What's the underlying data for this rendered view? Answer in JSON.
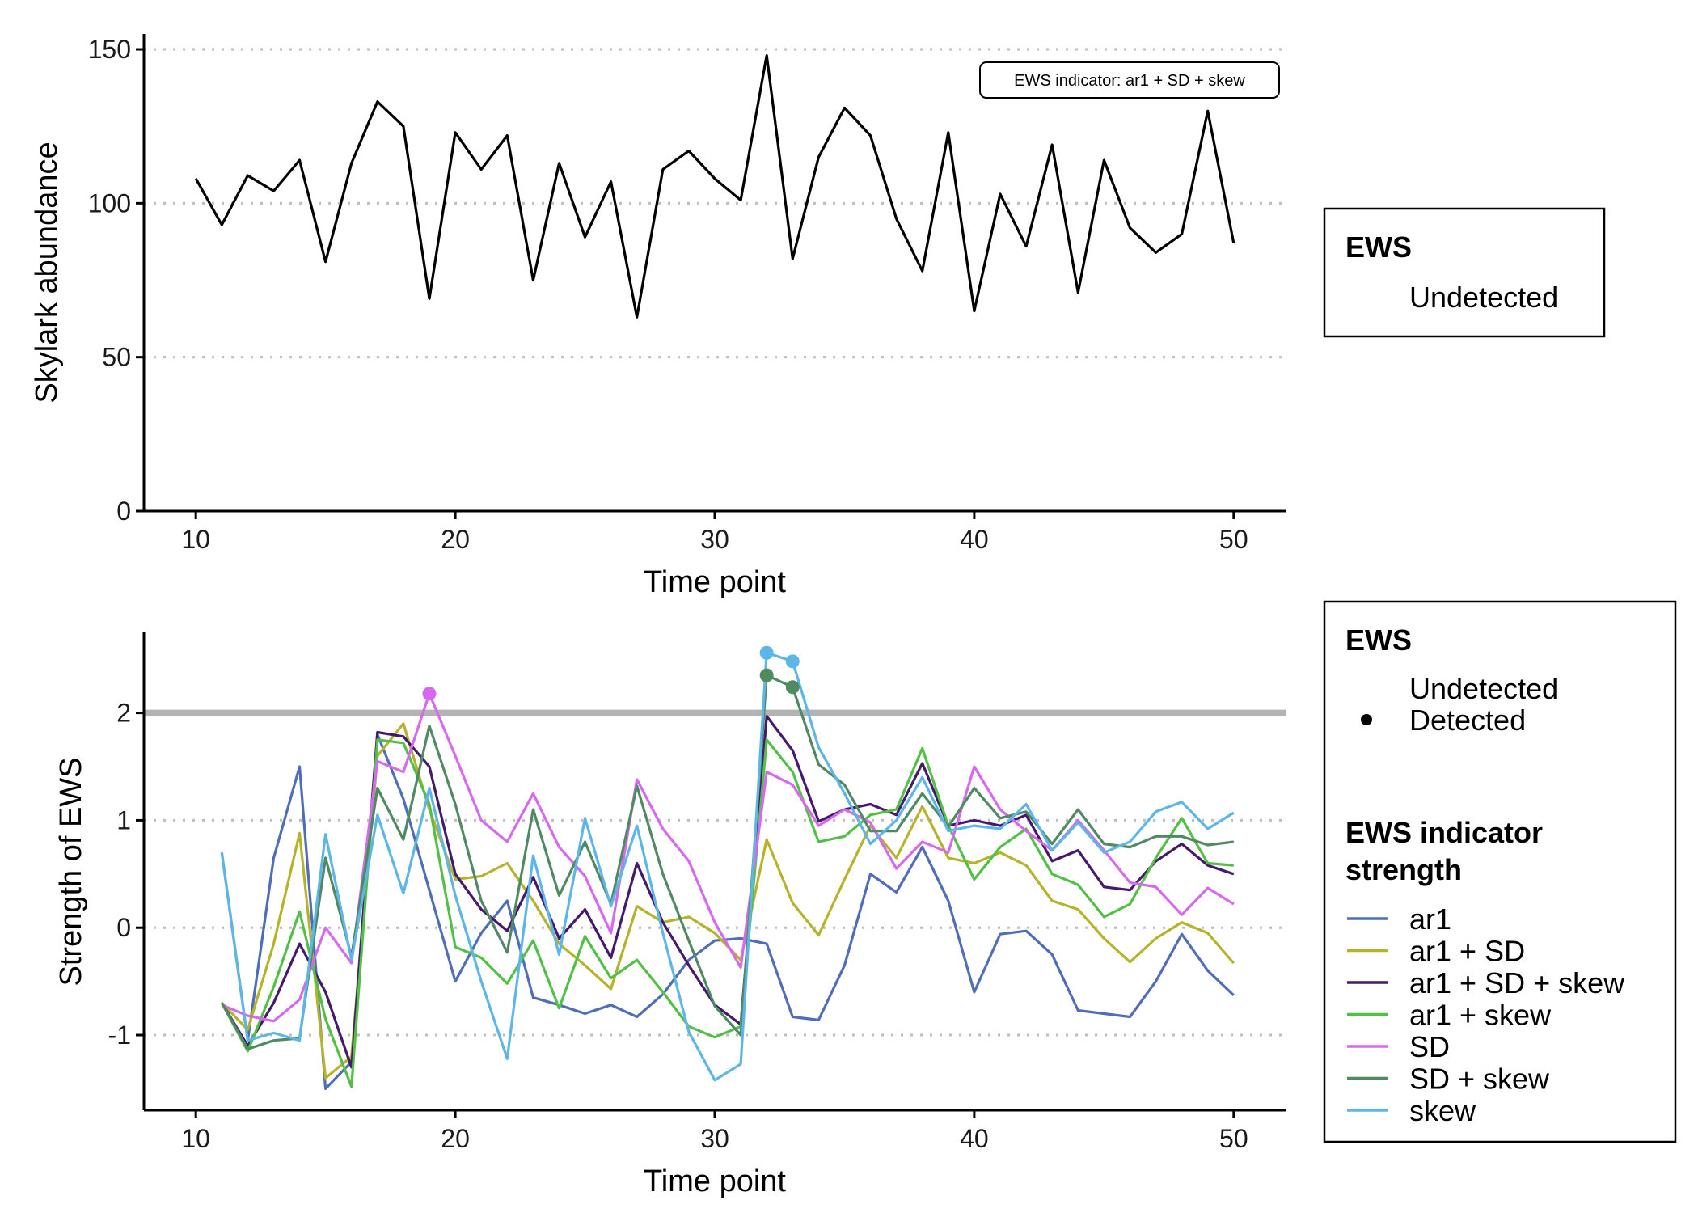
{
  "chart_data": [
    {
      "type": "line",
      "xlabel": "Time point",
      "ylabel": "Skylark abundance",
      "xlim": [
        8,
        52
      ],
      "ylim": [
        0,
        155
      ],
      "xticks": [
        10,
        20,
        30,
        40,
        50
      ],
      "yticks": [
        0,
        50,
        100,
        150
      ],
      "grid": "horizontal dotted",
      "annotation": "EWS indicator: ar1 + SD + skew",
      "legend": {
        "title": "EWS",
        "entries": [
          "Undetected"
        ],
        "placement": "right"
      },
      "series": [
        {
          "color": "#000000",
          "x": [
            10,
            11,
            12,
            13,
            14,
            15,
            16,
            17,
            18,
            19,
            20,
            21,
            22,
            23,
            24,
            25,
            26,
            27,
            28,
            29,
            30,
            31,
            32,
            33,
            34,
            35,
            36,
            37,
            38,
            39,
            40,
            41,
            42,
            43,
            44,
            45,
            46,
            47,
            48,
            49,
            50
          ],
          "y": [
            108,
            93,
            109,
            104,
            114,
            81,
            113,
            133,
            125,
            69,
            123,
            111,
            122,
            75,
            113,
            89,
            107,
            63,
            111,
            117,
            108,
            101,
            148,
            82,
            115,
            131,
            122,
            95,
            78,
            123,
            65,
            103,
            86,
            119,
            71,
            114,
            92,
            84,
            90,
            130,
            87
          ]
        }
      ]
    },
    {
      "type": "line",
      "xlabel": "Time point",
      "ylabel": "Strength of EWS",
      "xlim": [
        8,
        52
      ],
      "ylim": [
        -1.7,
        2.75
      ],
      "xticks": [
        10,
        20,
        30,
        40,
        50
      ],
      "yticks": [
        -1,
        0,
        1,
        2
      ],
      "grid": "horizontal dotted",
      "threshold": 2,
      "legend": {
        "detection_title": "EWS",
        "detection_entries": [
          "Undetected",
          "Detected"
        ],
        "strength_title": "EWS indicator strength",
        "placement": "right"
      },
      "x": [
        11,
        12,
        13,
        14,
        15,
        16,
        17,
        18,
        19,
        20,
        21,
        22,
        23,
        24,
        25,
        26,
        27,
        28,
        29,
        30,
        31,
        32,
        33,
        34,
        35,
        36,
        37,
        38,
        39,
        40,
        41,
        42,
        43,
        44,
        45,
        46,
        47,
        48,
        49,
        50
      ],
      "series": [
        {
          "name": "ar1",
          "color": "#4f6db8",
          "values": [
            0.7,
            -1.05,
            0.65,
            1.5,
            -1.5,
            -1.25,
            1.8,
            1.2,
            0.35,
            -0.5,
            -0.05,
            0.25,
            -0.65,
            -0.72,
            -0.8,
            -0.72,
            -0.83,
            -0.62,
            -0.3,
            -0.12,
            -0.1,
            -0.15,
            -0.83,
            -0.86,
            -0.35,
            0.5,
            0.33,
            0.75,
            0.25,
            -0.6,
            -0.06,
            -0.03,
            -0.25,
            -0.77,
            -0.8,
            -0.83,
            -0.5,
            -0.06,
            -0.4,
            -0.63
          ],
          "detected": []
        },
        {
          "name": "ar1 + SD",
          "color": "#b5b32a",
          "values": [
            -0.7,
            -0.95,
            -0.15,
            0.88,
            -1.4,
            -1.2,
            1.6,
            1.9,
            1.1,
            0.45,
            0.48,
            0.6,
            0.25,
            -0.15,
            -0.35,
            -0.57,
            0.2,
            0.05,
            0.1,
            -0.05,
            -0.3,
            0.82,
            0.23,
            -0.07,
            0.45,
            0.95,
            0.65,
            1.13,
            0.65,
            0.6,
            0.7,
            0.58,
            0.25,
            0.17,
            -0.1,
            -0.32,
            -0.1,
            0.05,
            -0.05,
            -0.33
          ],
          "detected": []
        },
        {
          "name": "ar1 + SD + skew",
          "color": "#46196f",
          "values": [
            -0.7,
            -1.1,
            -0.7,
            -0.15,
            -0.6,
            -1.3,
            1.82,
            1.78,
            1.5,
            0.5,
            0.17,
            -0.03,
            0.47,
            -0.1,
            0.17,
            -0.28,
            0.6,
            0.05,
            -0.35,
            -0.72,
            -0.9,
            1.97,
            1.65,
            0.99,
            1.1,
            1.15,
            1.05,
            1.53,
            0.95,
            1.0,
            0.95,
            1.05,
            0.62,
            0.72,
            0.38,
            0.35,
            0.62,
            0.78,
            0.58,
            0.5
          ],
          "detected": []
        },
        {
          "name": "ar1 + skew",
          "color": "#52c044",
          "values": [
            -0.7,
            -1.15,
            -0.55,
            0.15,
            -0.85,
            -1.48,
            1.75,
            1.72,
            1.15,
            -0.18,
            -0.28,
            -0.52,
            -0.12,
            -0.75,
            -0.08,
            -0.47,
            -0.3,
            -0.6,
            -0.92,
            -1.02,
            -0.92,
            1.75,
            1.45,
            0.8,
            0.85,
            1.05,
            1.1,
            1.67,
            0.95,
            0.45,
            0.75,
            0.92,
            0.5,
            0.4,
            0.1,
            0.22,
            0.65,
            1.02,
            0.6,
            0.58
          ],
          "detected": []
        },
        {
          "name": "SD",
          "color": "#d769f0",
          "values": [
            -0.72,
            -0.82,
            -0.87,
            -0.67,
            0.0,
            -0.33,
            1.55,
            1.45,
            2.18,
            1.6,
            1.0,
            0.8,
            1.25,
            0.75,
            0.48,
            -0.05,
            1.38,
            0.92,
            0.62,
            0.05,
            -0.37,
            1.45,
            1.33,
            0.95,
            1.1,
            0.98,
            0.55,
            0.8,
            0.7,
            1.5,
            1.1,
            0.9,
            0.72,
            1.0,
            0.72,
            0.42,
            0.38,
            0.12,
            0.37,
            0.22
          ],
          "detected": [
            19
          ]
        },
        {
          "name": "SD + skew",
          "color": "#4f8a63",
          "values": [
            -0.7,
            -1.13,
            -1.05,
            -1.03,
            0.65,
            -0.27,
            1.3,
            0.82,
            1.88,
            1.15,
            0.25,
            -0.23,
            1.1,
            0.3,
            0.8,
            0.22,
            1.32,
            0.5,
            -0.12,
            -0.73,
            -1.0,
            2.35,
            2.24,
            1.52,
            1.33,
            0.9,
            0.9,
            1.25,
            0.94,
            1.3,
            1.02,
            1.08,
            0.78,
            1.1,
            0.78,
            0.75,
            0.85,
            0.85,
            0.77,
            0.8
          ],
          "detected": [
            32,
            33
          ]
        },
        {
          "name": "skew",
          "color": "#5db6e8",
          "values": [
            0.7,
            -1.05,
            -0.98,
            -1.05,
            0.87,
            -0.3,
            1.05,
            0.32,
            1.3,
            0.3,
            -0.5,
            -1.22,
            0.67,
            -0.25,
            1.02,
            0.2,
            0.95,
            -0.05,
            -0.97,
            -1.42,
            -1.27,
            2.56,
            2.48,
            1.68,
            1.25,
            0.78,
            1.0,
            1.4,
            0.9,
            0.95,
            0.92,
            1.15,
            0.72,
            0.98,
            0.7,
            0.8,
            1.08,
            1.17,
            0.92,
            1.07
          ],
          "detected": [
            32,
            33
          ]
        }
      ]
    }
  ]
}
